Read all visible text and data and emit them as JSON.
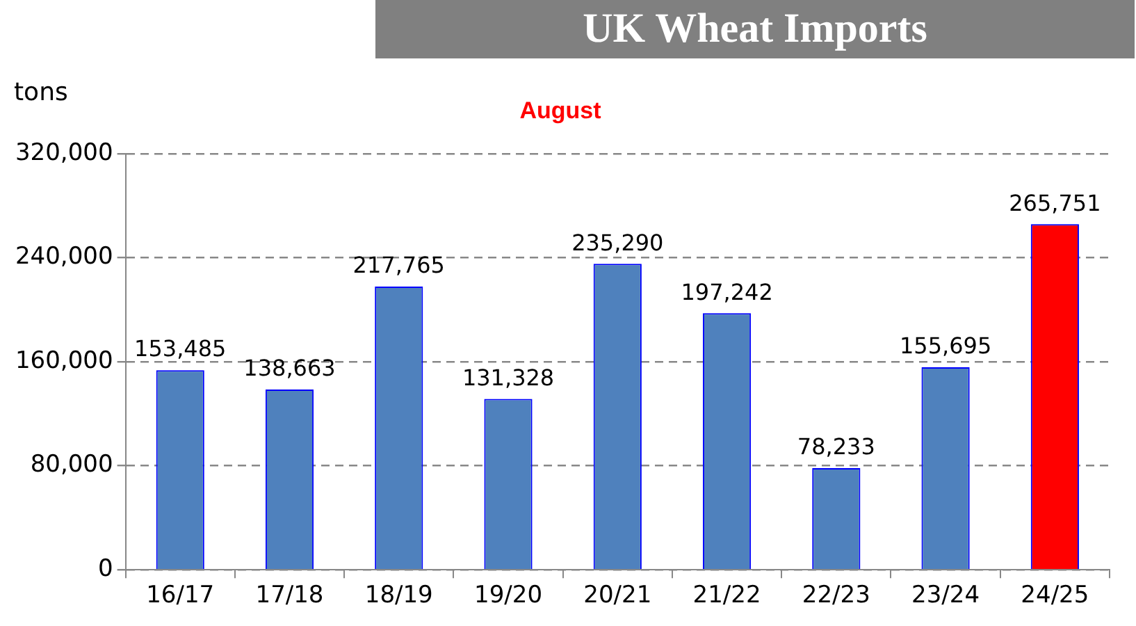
{
  "chart_data": {
    "type": "bar",
    "title": "UK Wheat Imports",
    "subtitle": "August",
    "ylabel": "tons",
    "categories": [
      "16/17",
      "17/18",
      "18/19",
      "19/20",
      "20/21",
      "21/22",
      "22/23",
      "23/24",
      "24/25"
    ],
    "values": [
      153485,
      138663,
      217765,
      131328,
      235290,
      197242,
      78233,
      155695,
      265751
    ],
    "colors": [
      "#4f81bd",
      "#4f81bd",
      "#4f81bd",
      "#4f81bd",
      "#4f81bd",
      "#4f81bd",
      "#4f81bd",
      "#4f81bd",
      "#ff0000"
    ],
    "value_labels": [
      "153,485",
      "138,663",
      "217,765",
      "131,328",
      "235,290",
      "197,242",
      "78,233",
      "155,695",
      "265,751"
    ],
    "ylim": [
      0,
      320000
    ],
    "yticks": [
      0,
      {
        "value": 80000,
        "label": "80,000"
      },
      {
        "value": 160000,
        "label": "160,000"
      },
      {
        "value": 240000,
        "label": "240,000"
      },
      {
        "value": 320000,
        "label": "320,000"
      }
    ],
    "grid": "y",
    "legend": false
  }
}
